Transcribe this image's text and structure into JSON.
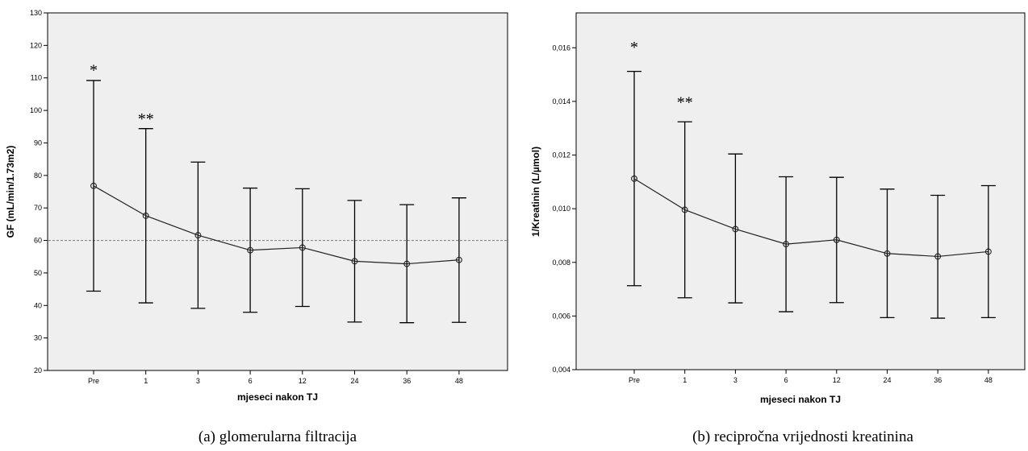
{
  "chart_data": [
    {
      "type": "line",
      "caption": "(a)   glomerularna filtracija",
      "xlabel": "mjeseci nakon TJ",
      "ylabel": "GF (mL/min/1.73m2)",
      "categories": [
        "Pre",
        "1",
        "3",
        "6",
        "12",
        "24",
        "36",
        "48"
      ],
      "values": [
        76.8,
        67.6,
        61.6,
        57.0,
        57.8,
        53.6,
        52.8,
        54.0
      ],
      "error_upper": [
        109.2,
        94.4,
        84.1,
        76.1,
        75.9,
        72.3,
        71.0,
        73.1
      ],
      "error_lower": [
        44.4,
        40.8,
        39.1,
        37.9,
        39.7,
        34.9,
        34.7,
        34.8
      ],
      "ylim": [
        20,
        130
      ],
      "yticks": [
        20,
        30,
        40,
        50,
        60,
        70,
        80,
        90,
        100,
        110,
        120,
        130
      ],
      "ytick_labels": [
        "20",
        "30",
        "40",
        "50",
        "60",
        "70",
        "80",
        "90",
        "100",
        "110",
        "120",
        "130"
      ],
      "reference_line": 60,
      "annotations": [
        {
          "category": "Pre",
          "text": "*",
          "y": 113
        },
        {
          "category": "1",
          "text": "**",
          "y": 98
        }
      ],
      "grid": false
    },
    {
      "type": "line",
      "caption": "(b)   recipročna vrijednosti kreatinina",
      "xlabel": "mjeseci nakon TJ",
      "ylabel": "1/Kreatinin (L/µmol)",
      "categories": [
        "Pre",
        "1",
        "3",
        "6",
        "12",
        "24",
        "36",
        "48"
      ],
      "values": [
        0.01112,
        0.00996,
        0.00924,
        0.00868,
        0.00884,
        0.00833,
        0.00822,
        0.0084
      ],
      "error_upper": [
        0.01512,
        0.01324,
        0.01204,
        0.01119,
        0.01117,
        0.01073,
        0.0105,
        0.01086
      ],
      "error_lower": [
        0.00713,
        0.00668,
        0.00649,
        0.00616,
        0.0065,
        0.00594,
        0.00592,
        0.00594
      ],
      "ylim": [
        0.004,
        0.0173
      ],
      "yticks": [
        0.004,
        0.006,
        0.008,
        0.01,
        0.012,
        0.014,
        0.016
      ],
      "ytick_labels": [
        "0,004",
        "0,006",
        "0,008",
        "0,010",
        "0,012",
        "0,014",
        "0,016"
      ],
      "annotations": [
        {
          "category": "Pre",
          "text": "*",
          "y": 0.0161
        },
        {
          "category": "1",
          "text": "**",
          "y": 0.01405
        }
      ],
      "grid": false
    }
  ]
}
